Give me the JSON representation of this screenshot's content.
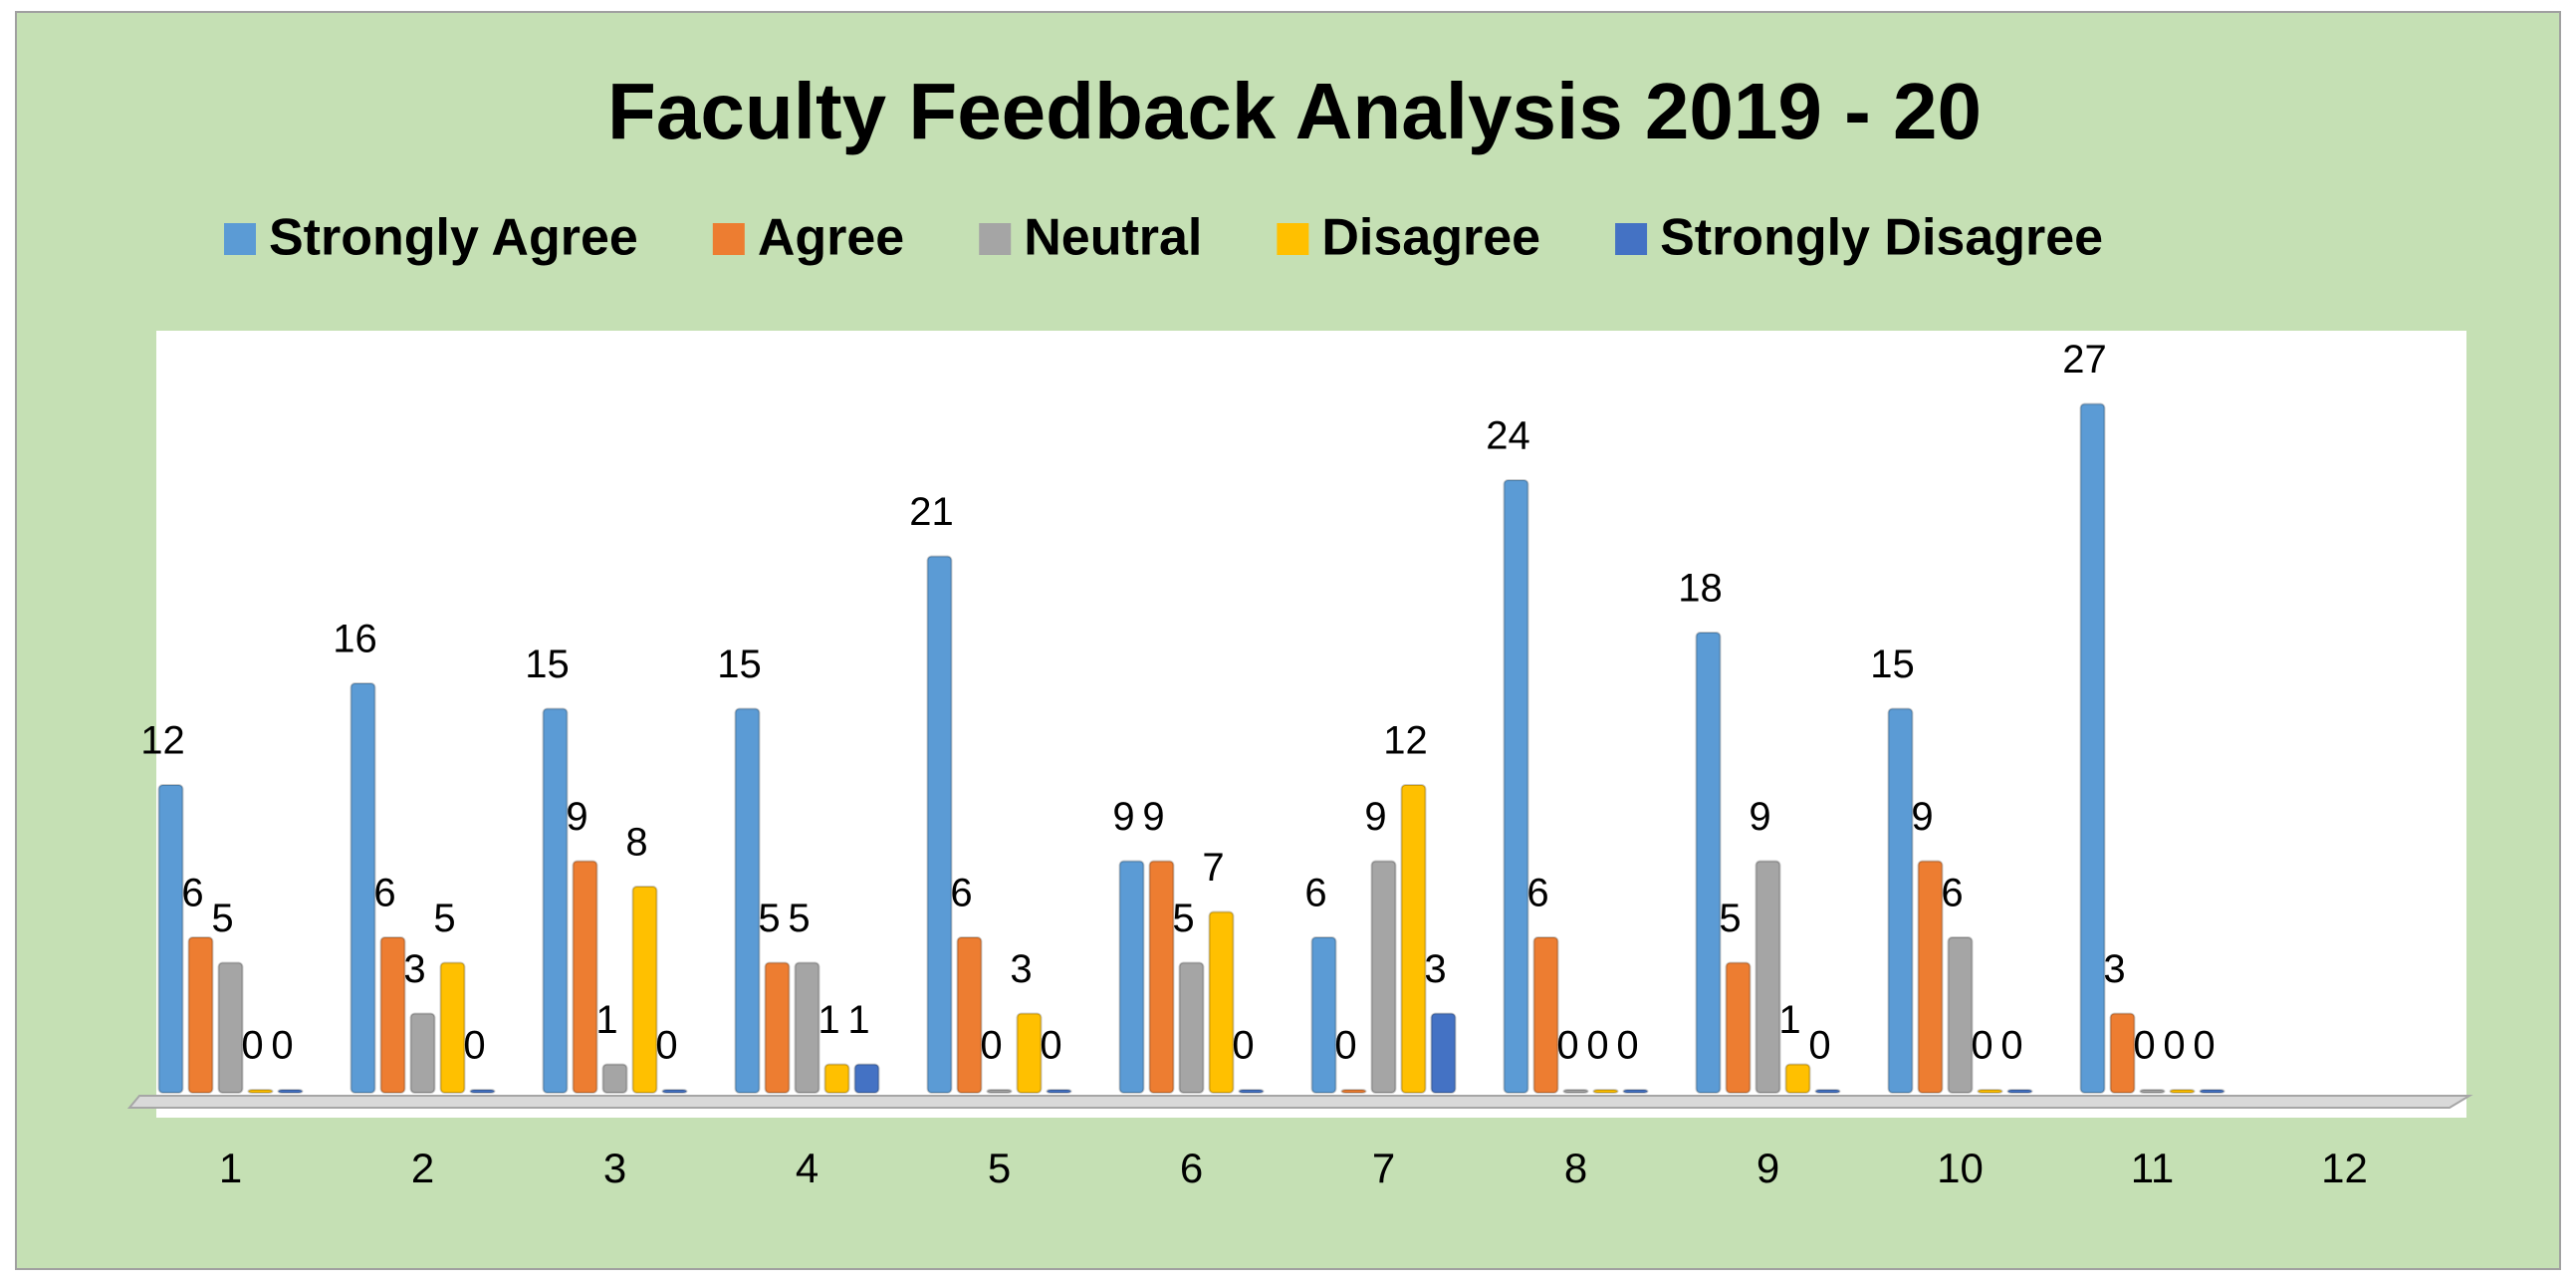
{
  "chart_data": {
    "type": "bar",
    "title": "Faculty Feedback Analysis 2019 - 20",
    "categories": [
      "1",
      "2",
      "3",
      "4",
      "5",
      "6",
      "7",
      "8",
      "9",
      "10",
      "11",
      "12"
    ],
    "series": [
      {
        "name": "Strongly Agree",
        "color": "#5b9bd5",
        "values": [
          12,
          16,
          15,
          15,
          21,
          9,
          6,
          24,
          18,
          15,
          27,
          null
        ]
      },
      {
        "name": "Agree",
        "color": "#ed7d31",
        "values": [
          6,
          6,
          9,
          5,
          6,
          9,
          0,
          6,
          5,
          9,
          3,
          null
        ]
      },
      {
        "name": "Neutral",
        "color": "#a5a5a5",
        "values": [
          5,
          3,
          1,
          5,
          0,
          5,
          9,
          0,
          9,
          6,
          0,
          null
        ]
      },
      {
        "name": "Disagree",
        "color": "#ffc000",
        "values": [
          0,
          5,
          8,
          1,
          3,
          7,
          12,
          0,
          1,
          0,
          0,
          null
        ]
      },
      {
        "name": "Strongly Disagree",
        "color": "#4472c4",
        "values": [
          0,
          0,
          0,
          1,
          0,
          0,
          3,
          0,
          0,
          0,
          0,
          null
        ]
      }
    ],
    "ylim": [
      0,
      30
    ],
    "legend": "top"
  }
}
